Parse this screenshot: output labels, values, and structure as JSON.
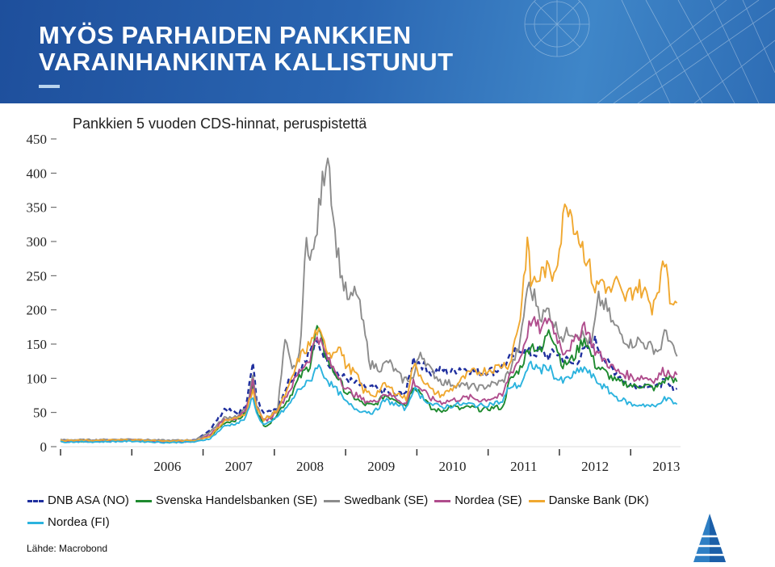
{
  "slide": {
    "title": "MYÖS PARHAIDEN PANKKIEN\nVARAINHANKINTA KALLISTUNUT",
    "source": "Lähde: Macrobond"
  },
  "chart_data": {
    "type": "line",
    "title": "Pankkien 5 vuoden CDS-hinnat, peruspistettä",
    "xlabel": "",
    "ylabel": "",
    "ylim": [
      0,
      450
    ],
    "xlim": [
      2005.0,
      2013.7
    ],
    "yticks": [
      0,
      50,
      100,
      150,
      200,
      250,
      300,
      350,
      400,
      450
    ],
    "xtick_labels": [
      "2006",
      "2007",
      "2008",
      "2009",
      "2010",
      "2011",
      "2012",
      "2013"
    ],
    "grid": false,
    "legend_position": "bottom",
    "series": [
      {
        "name": "DNB ASA (NO)",
        "color": "#1f2f9e",
        "dash": "dashed",
        "x": [
          2005.0,
          2005.5,
          2006.0,
          2006.5,
          2006.9,
          2007.1,
          2007.3,
          2007.5,
          2007.6,
          2007.7,
          2007.75,
          2007.85,
          2007.95,
          2008.05,
          2008.2,
          2008.35,
          2008.5,
          2008.6,
          2008.7,
          2008.8,
          2008.9,
          2009.0,
          2009.15,
          2009.25,
          2009.4,
          2009.55,
          2009.7,
          2009.85,
          2009.95,
          2010.05,
          2010.2,
          2010.35,
          2010.5,
          2010.6,
          2010.75,
          2010.9,
          2011.0,
          2011.1,
          2011.2,
          2011.3,
          2011.45,
          2011.6,
          2011.75,
          2011.85,
          2011.95,
          2012.05,
          2012.2,
          2012.35,
          2012.5,
          2012.65,
          2012.8,
          2012.95,
          2013.05,
          2013.15,
          2013.25,
          2013.35,
          2013.45,
          2013.55,
          2013.65
        ],
        "y": [
          9,
          9,
          10,
          8,
          9,
          25,
          55,
          48,
          62,
          120,
          70,
          52,
          50,
          60,
          95,
          112,
          140,
          150,
          135,
          118,
          105,
          100,
          92,
          88,
          85,
          80,
          75,
          80,
          128,
          122,
          108,
          112,
          110,
          115,
          112,
          108,
          112,
          110,
          118,
          128,
          145,
          135,
          140,
          132,
          138,
          130,
          120,
          140,
          155,
          125,
          108,
          92,
          90,
          88,
          92,
          85,
          95,
          88,
          85
        ]
      },
      {
        "name": "Svenska Handelsbanken (SE)",
        "color": "#1e8a2f",
        "dash": "solid",
        "x": [
          2005.0,
          2005.5,
          2006.0,
          2006.5,
          2006.9,
          2007.1,
          2007.3,
          2007.5,
          2007.6,
          2007.7,
          2007.75,
          2007.85,
          2007.95,
          2008.05,
          2008.2,
          2008.35,
          2008.5,
          2008.6,
          2008.7,
          2008.8,
          2008.9,
          2009.0,
          2009.15,
          2009.25,
          2009.4,
          2009.55,
          2009.7,
          2009.85,
          2009.95,
          2010.05,
          2010.2,
          2010.35,
          2010.5,
          2010.6,
          2010.75,
          2010.9,
          2011.0,
          2011.1,
          2011.2,
          2011.3,
          2011.45,
          2011.6,
          2011.75,
          2011.85,
          2011.95,
          2012.05,
          2012.2,
          2012.35,
          2012.5,
          2012.65,
          2012.8,
          2012.95,
          2013.05,
          2013.15,
          2013.25,
          2013.35,
          2013.45,
          2013.55,
          2013.65
        ],
        "y": [
          8,
          8,
          9,
          7,
          8,
          15,
          35,
          40,
          50,
          90,
          55,
          30,
          35,
          50,
          70,
          100,
          120,
          175,
          140,
          115,
          100,
          80,
          70,
          62,
          60,
          75,
          70,
          60,
          90,
          80,
          55,
          52,
          60,
          55,
          58,
          54,
          55,
          58,
          56,
          95,
          115,
          150,
          138,
          175,
          150,
          118,
          130,
          160,
          120,
          108,
          95,
          92,
          88,
          90,
          88,
          85,
          95,
          102,
          95
        ]
      },
      {
        "name": "Swedbank (SE)",
        "color": "#8c8c8c",
        "dash": "solid",
        "x": [
          2005.0,
          2005.5,
          2006.0,
          2006.5,
          2006.9,
          2007.1,
          2007.3,
          2007.5,
          2007.6,
          2007.7,
          2007.75,
          2007.85,
          2007.95,
          2008.05,
          2008.15,
          2008.25,
          2008.35,
          2008.45,
          2008.55,
          2008.65,
          2008.75,
          2008.85,
          2008.95,
          2009.05,
          2009.15,
          2009.25,
          2009.35,
          2009.5,
          2009.6,
          2009.7,
          2009.8,
          2009.95,
          2010.05,
          2010.2,
          2010.35,
          2010.5,
          2010.6,
          2010.75,
          2010.9,
          2011.0,
          2011.1,
          2011.2,
          2011.3,
          2011.45,
          2011.55,
          2011.65,
          2011.75,
          2011.85,
          2011.95,
          2012.05,
          2012.15,
          2012.3,
          2012.45,
          2012.55,
          2012.65,
          2012.75,
          2012.9,
          2013.0,
          2013.1,
          2013.2,
          2013.3,
          2013.4,
          2013.5,
          2013.6,
          2013.65
        ],
        "y": [
          10,
          10,
          11,
          9,
          10,
          22,
          42,
          45,
          55,
          100,
          60,
          40,
          45,
          58,
          155,
          110,
          130,
          300,
          280,
          365,
          440,
          310,
          245,
          210,
          230,
          175,
          120,
          115,
          125,
          110,
          98,
          100,
          140,
          110,
          95,
          92,
          90,
          88,
          86,
          90,
          92,
          95,
          110,
          150,
          235,
          220,
          190,
          200,
          175,
          160,
          170,
          165,
          150,
          215,
          205,
          180,
          160,
          150,
          155,
          150,
          145,
          140,
          170,
          140,
          132
        ]
      },
      {
        "name": "Nordea (SE)",
        "color": "#b04d8d",
        "dash": "solid",
        "x": [
          2005.0,
          2005.5,
          2006.0,
          2006.5,
          2006.9,
          2007.1,
          2007.3,
          2007.5,
          2007.6,
          2007.7,
          2007.75,
          2007.85,
          2007.95,
          2008.05,
          2008.2,
          2008.35,
          2008.5,
          2008.6,
          2008.7,
          2008.8,
          2008.9,
          2009.0,
          2009.15,
          2009.25,
          2009.4,
          2009.55,
          2009.7,
          2009.85,
          2009.95,
          2010.05,
          2010.2,
          2010.35,
          2010.5,
          2010.6,
          2010.75,
          2010.9,
          2011.0,
          2011.1,
          2011.2,
          2011.3,
          2011.45,
          2011.6,
          2011.75,
          2011.85,
          2011.95,
          2012.05,
          2012.2,
          2012.35,
          2012.5,
          2012.65,
          2012.8,
          2012.95,
          2013.05,
          2013.15,
          2013.25,
          2013.35,
          2013.45,
          2013.55,
          2013.65
        ],
        "y": [
          8,
          8,
          9,
          7,
          8,
          18,
          40,
          42,
          52,
          95,
          58,
          38,
          42,
          55,
          80,
          110,
          130,
          165,
          140,
          118,
          105,
          85,
          75,
          68,
          65,
          78,
          72,
          62,
          95,
          85,
          70,
          65,
          68,
          70,
          72,
          68,
          70,
          72,
          74,
          105,
          130,
          185,
          170,
          190,
          165,
          140,
          150,
          180,
          140,
          125,
          110,
          105,
          100,
          102,
          100,
          98,
          110,
          108,
          105
        ]
      },
      {
        "name": "Danske Bank (DK)",
        "color": "#f0a830",
        "dash": "solid",
        "x": [
          2005.0,
          2005.5,
          2006.0,
          2006.5,
          2006.9,
          2007.1,
          2007.3,
          2007.5,
          2007.6,
          2007.7,
          2007.75,
          2007.85,
          2007.95,
          2008.05,
          2008.2,
          2008.35,
          2008.5,
          2008.6,
          2008.7,
          2008.8,
          2008.9,
          2009.0,
          2009.15,
          2009.25,
          2009.4,
          2009.55,
          2009.7,
          2009.85,
          2009.95,
          2010.05,
          2010.2,
          2010.35,
          2010.5,
          2010.6,
          2010.75,
          2010.9,
          2011.0,
          2011.1,
          2011.2,
          2011.3,
          2011.45,
          2011.55,
          2011.6,
          2011.7,
          2011.8,
          2011.9,
          2012.0,
          2012.1,
          2012.2,
          2012.3,
          2012.4,
          2012.5,
          2012.6,
          2012.7,
          2012.8,
          2012.9,
          2013.0,
          2013.1,
          2013.2,
          2013.3,
          2013.4,
          2013.5,
          2013.55,
          2013.65
        ],
        "y": [
          9,
          9,
          10,
          8,
          9,
          15,
          38,
          42,
          50,
          85,
          55,
          40,
          45,
          55,
          85,
          130,
          150,
          170,
          150,
          135,
          150,
          120,
          105,
          82,
          75,
          90,
          80,
          70,
          120,
          105,
          82,
          75,
          85,
          95,
          108,
          110,
          112,
          115,
          120,
          120,
          190,
          300,
          240,
          245,
          260,
          250,
          290,
          365,
          330,
          300,
          270,
          230,
          245,
          225,
          240,
          215,
          225,
          235,
          225,
          205,
          240,
          275,
          220,
          210
        ]
      },
      {
        "name": "Nordea (FI)",
        "color": "#2bb3de",
        "dash": "solid",
        "x": [
          2005.0,
          2005.5,
          2006.0,
          2006.5,
          2006.9,
          2007.1,
          2007.3,
          2007.5,
          2007.6,
          2007.7,
          2007.75,
          2007.85,
          2007.95,
          2008.05,
          2008.2,
          2008.35,
          2008.5,
          2008.6,
          2008.7,
          2008.8,
          2008.9,
          2009.0,
          2009.15,
          2009.25,
          2009.4,
          2009.55,
          2009.7,
          2009.85,
          2009.95,
          2010.05,
          2010.2,
          2010.35,
          2010.5,
          2010.6,
          2010.75,
          2010.9,
          2011.0,
          2011.1,
          2011.2,
          2011.3,
          2011.45,
          2011.6,
          2011.75,
          2011.85,
          2011.95,
          2012.05,
          2012.2,
          2012.35,
          2012.5,
          2012.65,
          2012.8,
          2012.95,
          2013.05,
          2013.15,
          2013.25,
          2013.35,
          2013.45,
          2013.55,
          2013.65
        ],
        "y": [
          7,
          7,
          8,
          6,
          7,
          12,
          30,
          35,
          42,
          75,
          48,
          32,
          35,
          45,
          60,
          85,
          95,
          120,
          105,
          90,
          80,
          65,
          55,
          52,
          50,
          68,
          62,
          55,
          85,
          75,
          62,
          58,
          60,
          62,
          62,
          60,
          62,
          64,
          65,
          88,
          90,
          120,
          112,
          118,
          100,
          95,
          105,
          115,
          98,
          85,
          72,
          65,
          60,
          62,
          60,
          58,
          70,
          68,
          62
        ]
      }
    ]
  }
}
